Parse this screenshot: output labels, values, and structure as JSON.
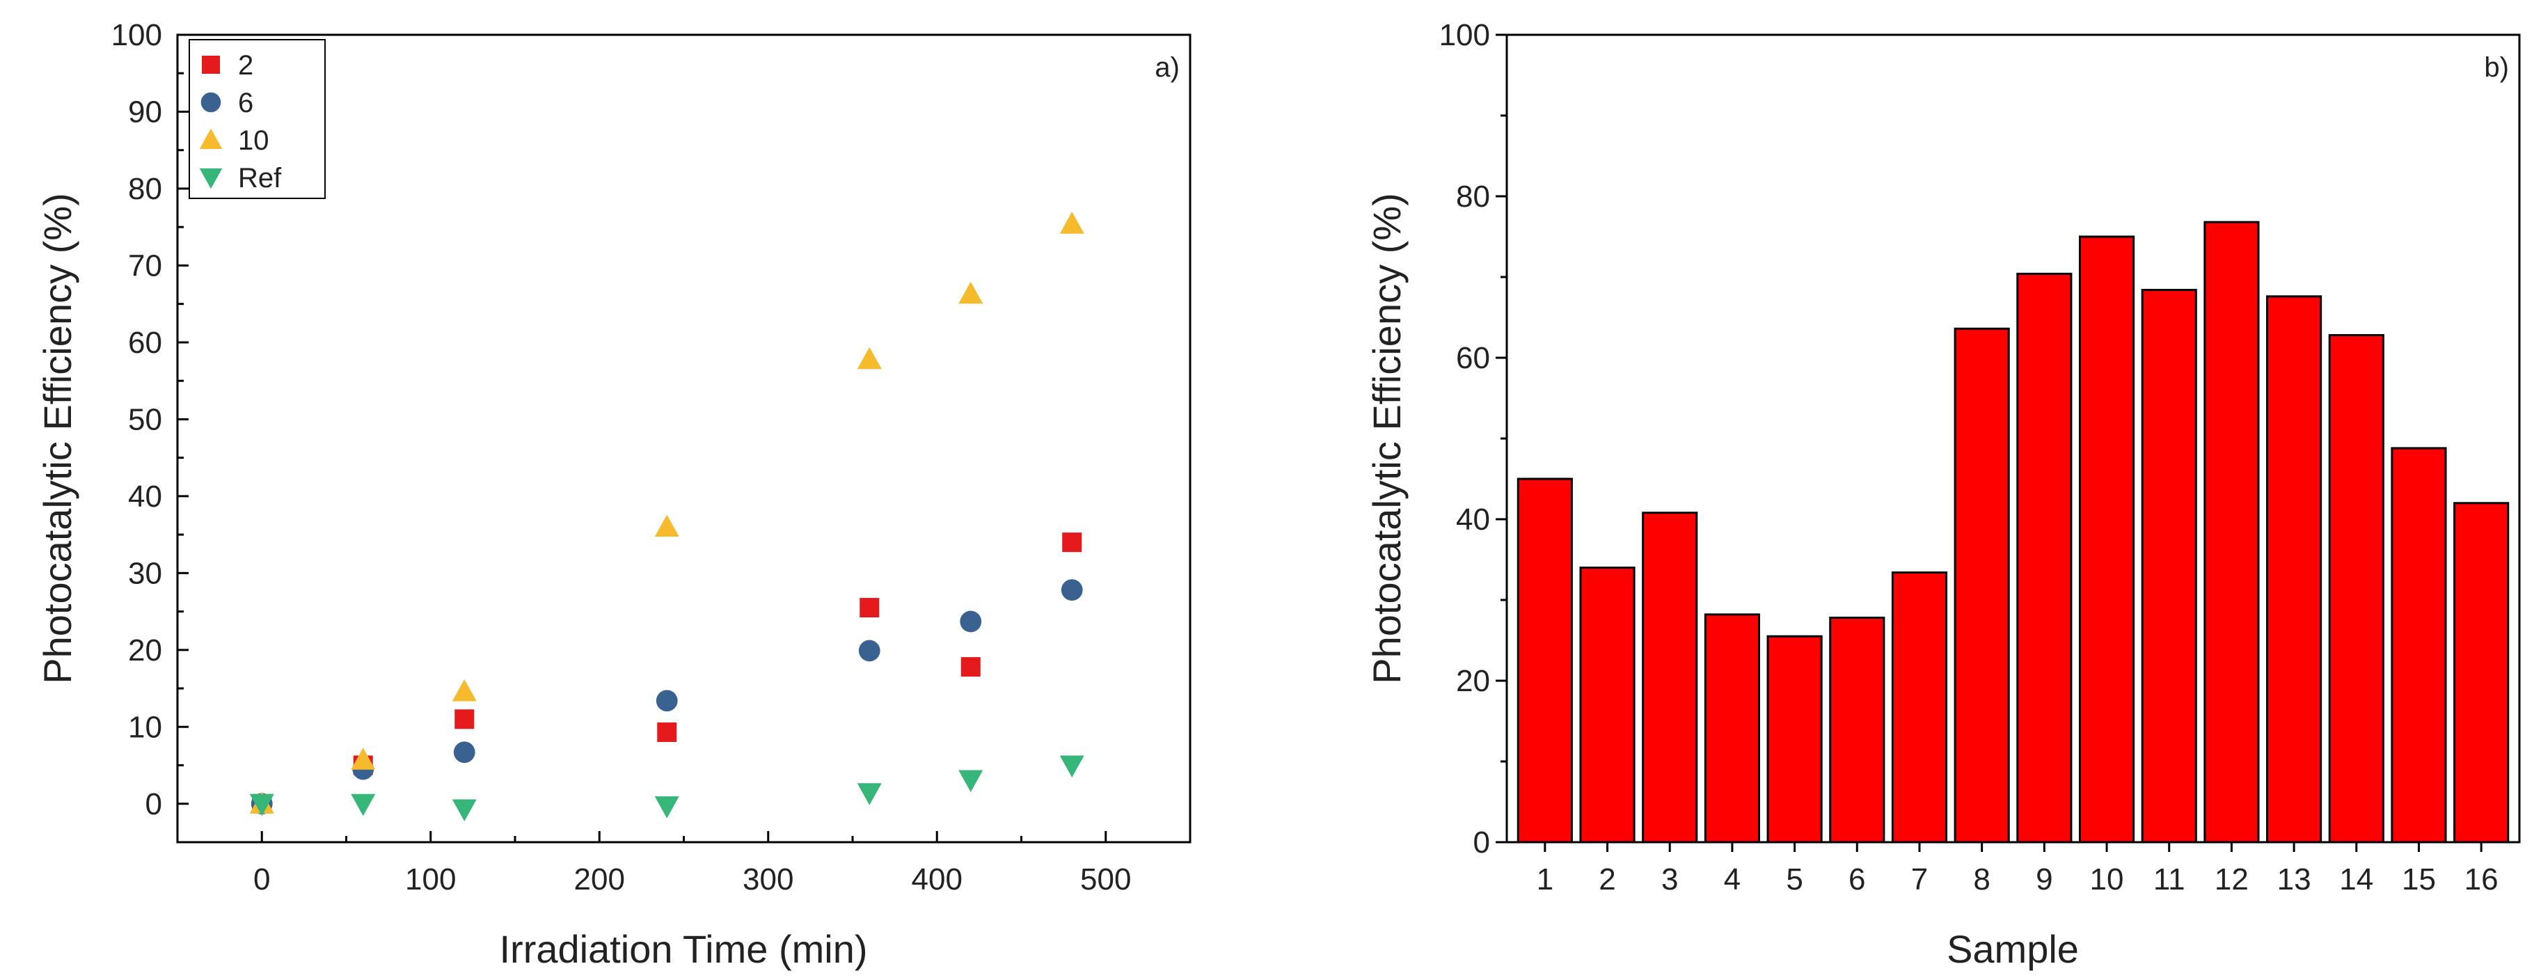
{
  "chart_data": [
    {
      "type": "scatter",
      "panel_label": "a)",
      "xlabel": "Irradiation Time (min)",
      "ylabel": "Photocatalytic Efficiency (%)",
      "xlim": [
        -50,
        550
      ],
      "ylim": [
        -5,
        100
      ],
      "xticks": [
        0,
        100,
        200,
        300,
        400,
        500
      ],
      "yticks": [
        0,
        10,
        20,
        30,
        40,
        50,
        60,
        70,
        80,
        90,
        100
      ],
      "legend_position": "top-left",
      "series": [
        {
          "name": "2",
          "marker": "square",
          "color": "#e41a1c",
          "x": [
            0,
            60,
            120,
            240,
            360,
            420,
            480
          ],
          "y": [
            0,
            5,
            11,
            9.3,
            25.5,
            17.8,
            34
          ]
        },
        {
          "name": "6",
          "marker": "circle",
          "color": "#3a6291",
          "x": [
            0,
            60,
            120,
            240,
            360,
            420,
            480
          ],
          "y": [
            0,
            4.5,
            6.7,
            13.4,
            19.9,
            23.7,
            27.8
          ]
        },
        {
          "name": "10",
          "marker": "triangle-up",
          "color": "#f5bb2d",
          "x": [
            0,
            60,
            120,
            240,
            360,
            420,
            480
          ],
          "y": [
            0,
            5.7,
            14.6,
            36,
            57.8,
            66.3,
            75.4
          ]
        },
        {
          "name": "Ref",
          "marker": "triangle-down",
          "color": "#37b679",
          "x": [
            0,
            60,
            120,
            240,
            360,
            420,
            480
          ],
          "y": [
            0,
            0,
            -0.7,
            -0.3,
            1.4,
            3.1,
            5
          ]
        }
      ]
    },
    {
      "type": "bar",
      "panel_label": "b)",
      "xlabel": "Sample",
      "ylabel": "Photocatalytic Efficiency (%)",
      "ylim": [
        0,
        100
      ],
      "yticks": [
        0,
        20,
        40,
        60,
        80,
        100
      ],
      "bar_color": "#ff0000",
      "categories": [
        "1",
        "2",
        "3",
        "4",
        "5",
        "6",
        "7",
        "8",
        "9",
        "10",
        "11",
        "12",
        "13",
        "14",
        "15",
        "16"
      ],
      "values": [
        45,
        34,
        40.8,
        28.2,
        25.5,
        27.8,
        33.4,
        63.6,
        70.4,
        75,
        68.4,
        76.8,
        67.6,
        62.8,
        48.8,
        42
      ]
    }
  ]
}
